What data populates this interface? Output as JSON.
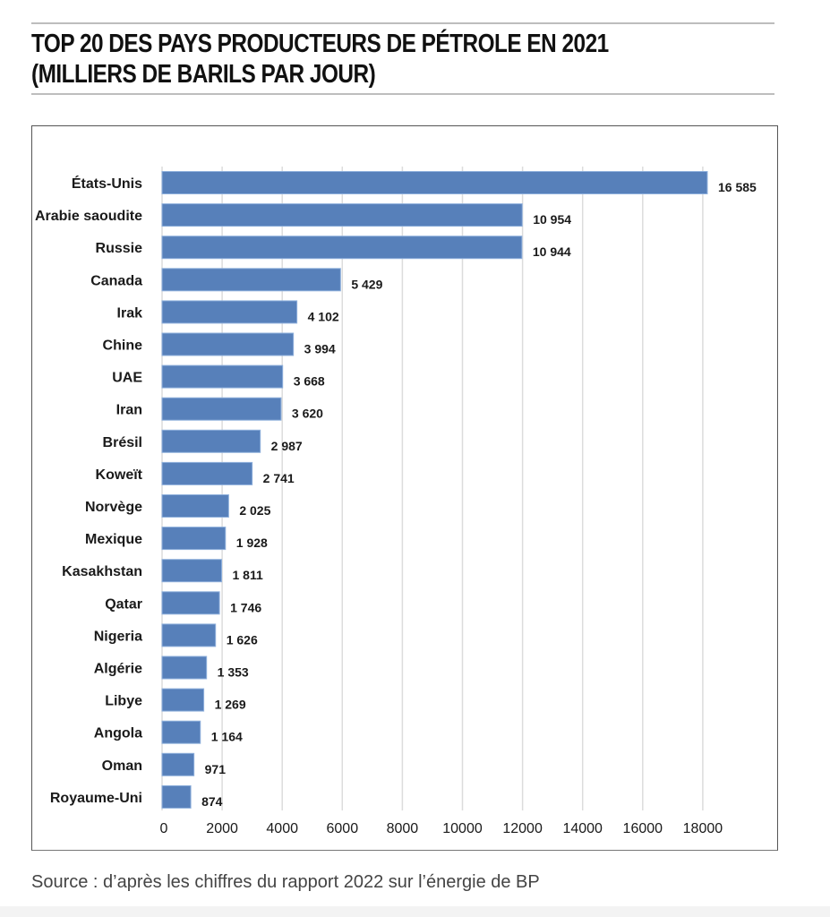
{
  "chart_data": {
    "type": "bar",
    "orientation": "horizontal",
    "title": "TOP 20 DES PAYS PRODUCTEURS DE PÉTROLE EN 2021",
    "subtitle": "(MILLIERS DE BARILS PAR JOUR)",
    "categories": [
      "États-Unis",
      "Arabie saoudite",
      "Russie",
      "Canada",
      "Irak",
      "Chine",
      "UAE",
      "Iran",
      "Brésil",
      "Koweït",
      "Norvège",
      "Mexique",
      "Kasakhstan",
      "Qatar",
      "Nigeria",
      "Algérie",
      "Libye",
      "Angola",
      "Oman",
      "Royaume-Uni"
    ],
    "values": [
      16585,
      10954,
      10944,
      5429,
      4102,
      3994,
      3668,
      3620,
      2987,
      2741,
      2025,
      1928,
      1811,
      1746,
      1626,
      1353,
      1269,
      1164,
      971,
      874
    ],
    "value_labels": [
      "16 585",
      "10 954",
      "10 944",
      "5 429",
      "4 102",
      "3 994",
      "3 668",
      "3 620",
      "2 987",
      "2 741",
      "2 025",
      "1 928",
      "1 811",
      "1 746",
      "1 626",
      "1 353",
      "1 269",
      "1 164",
      "971",
      "874"
    ],
    "x_ticks": [
      "0",
      "2000",
      "4000",
      "6000",
      "8000",
      "10000",
      "12000",
      "14000",
      "16000",
      "18000"
    ],
    "xlim": [
      0,
      18000
    ],
    "xlabel": "",
    "ylabel": "",
    "grid": "vertical",
    "legend": "none",
    "bar_color": "#5780ba"
  },
  "source": "Source : d’après les chiffres du rapport 2022 sur l’énergie de BP"
}
